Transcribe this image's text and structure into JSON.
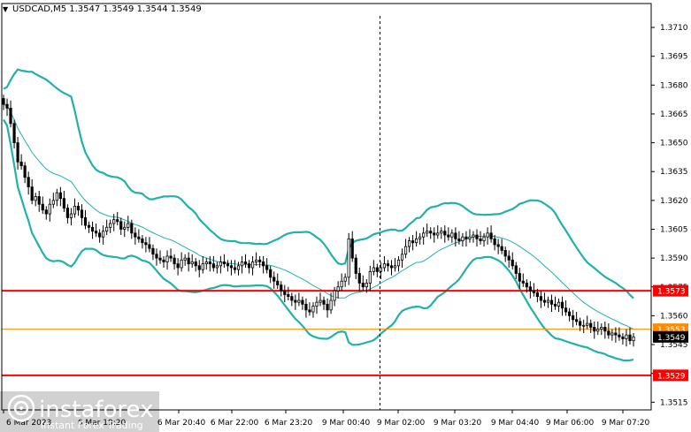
{
  "window": {
    "header_text": "USDCAD,M5  1.3547 1.3549 1.3544 1.3549",
    "cursor_marker": "▼"
  },
  "brand": {
    "name": "instaforex",
    "tagline": "Instant Forex Trading"
  },
  "colors": {
    "candle": "#000000",
    "bollinger": "#20b2aa",
    "moving_average": "#20b2aa",
    "level_line": "#ff0000",
    "price_line": "#ff8c00",
    "frame": "#000000",
    "background": "#ffffff"
  },
  "chart_data": {
    "type": "candlestick",
    "symbol": "USDCAD",
    "timeframe": "M5",
    "ohlc_header": {
      "open": 1.3547,
      "high": 1.3549,
      "low": 1.3544,
      "close": 1.3549
    },
    "y_axis": {
      "ticks": [
        "1.3710",
        "1.3695",
        "1.3680",
        "1.3665",
        "1.3650",
        "1.3635",
        "1.3620",
        "1.3605",
        "1.3590",
        "1.3575",
        "1.3560",
        "1.3545",
        "1.3530",
        "1.3515"
      ],
      "range": [
        1.3511,
        1.3716
      ]
    },
    "x_axis": {
      "ticks": [
        "6 Mar 2023",
        "6 Mar 19:20",
        "6 Mar 20:40",
        "6 Mar 22:00",
        "6 Mar 23:20",
        "9 Mar 00:40",
        "9 Mar 02:00",
        "9 Mar 03:20",
        "9 Mar 04:40",
        "9 Mar 06:00",
        "9 Mar 07:20"
      ]
    },
    "levels": [
      {
        "label": "1.3573",
        "value": 1.3573
      },
      {
        "label": "1.3529",
        "value": 1.3529
      }
    ],
    "current_price": {
      "label": "1.3549",
      "value": 1.3549
    },
    "secondary_price_tag": {
      "label": "1.3553",
      "value": 1.3553
    },
    "separator_after_candle": 107,
    "candle_closes": [
      1.367,
      1.3668,
      1.366,
      1.365,
      1.364,
      1.3638,
      1.3632,
      1.3627,
      1.362,
      1.3622,
      1.3618,
      1.3615,
      1.3613,
      1.3618,
      1.362,
      1.3624,
      1.3621,
      1.3616,
      1.3611,
      1.3613,
      1.3617,
      1.3615,
      1.3611,
      1.3607,
      1.3606,
      1.3604,
      1.3603,
      1.3601,
      1.3604,
      1.3606,
      1.3608,
      1.361,
      1.3609,
      1.3605,
      1.3606,
      1.3608,
      1.3603,
      1.3601,
      1.36,
      1.3598,
      1.3597,
      1.3595,
      1.3592,
      1.359,
      1.3589,
      1.3588,
      1.3591,
      1.359,
      1.3587,
      1.3585,
      1.3589,
      1.359,
      1.3587,
      1.3588,
      1.3586,
      1.3584,
      1.3587,
      1.3588,
      1.3587,
      1.3585,
      1.3586,
      1.3588,
      1.3587,
      1.3586,
      1.3585,
      1.3584,
      1.3586,
      1.3588,
      1.3587,
      1.3585,
      1.3588,
      1.3589,
      1.3588,
      1.3586,
      1.3584,
      1.358,
      1.3578,
      1.3576,
      1.3573,
      1.3571,
      1.357,
      1.3568,
      1.3567,
      1.3568,
      1.3566,
      1.3563,
      1.3562,
      1.3565,
      1.3567,
      1.3568,
      1.3566,
      1.3563,
      1.3568,
      1.3573,
      1.3575,
      1.3578,
      1.358,
      1.36,
      1.359,
      1.3582,
      1.3577,
      1.3575,
      1.3577,
      1.3583,
      1.3585,
      1.3583,
      1.3585,
      1.3587,
      1.3586,
      1.3585,
      1.3586,
      1.3589,
      1.3592,
      1.3596,
      1.3599,
      1.3598,
      1.36,
      1.3601,
      1.3603,
      1.3604,
      1.3603,
      1.3602,
      1.3603,
      1.3604,
      1.3602,
      1.3601,
      1.3603,
      1.36,
      1.3599,
      1.3601,
      1.36,
      1.3601,
      1.3602,
      1.36,
      1.3599,
      1.3601,
      1.3603,
      1.36,
      1.3597,
      1.3596,
      1.3594,
      1.3591,
      1.3589,
      1.3586,
      1.3582,
      1.3578,
      1.3577,
      1.3575,
      1.3573,
      1.3572,
      1.357,
      1.3568,
      1.3567,
      1.3568,
      1.3566,
      1.3565,
      1.3567,
      1.3564,
      1.3562,
      1.356,
      1.3558,
      1.3557,
      1.3555,
      1.3555,
      1.3556,
      1.3554,
      1.3552,
      1.3553,
      1.3554,
      1.3552,
      1.355,
      1.3551,
      1.355,
      1.3549,
      1.3548,
      1.355,
      1.3547,
      1.3549
    ]
  }
}
